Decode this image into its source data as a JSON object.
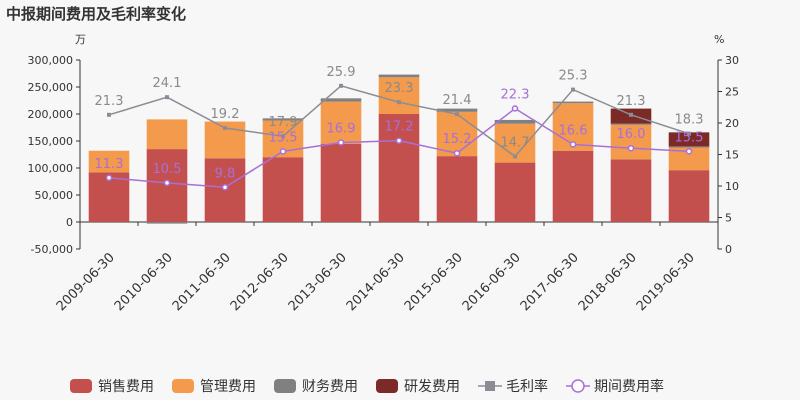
{
  "chart_data": {
    "type": "bar",
    "title": "中报期间费用及毛利率变化",
    "left_unit": "万",
    "right_unit": "%",
    "categories": [
      "2009-06-30",
      "2010-06-30",
      "2011-06-30",
      "2012-06-30",
      "2013-06-30",
      "2014-06-30",
      "2015-06-30",
      "2016-06-30",
      "2017-06-30",
      "2018-06-30",
      "2019-06-30"
    ],
    "ylim_left": [
      -50000,
      300000
    ],
    "yticks_left": [
      "-50,000",
      "0",
      "50,000",
      "100,000",
      "150,000",
      "200,000",
      "250,000",
      "300,000"
    ],
    "ylim_right": [
      0,
      30
    ],
    "yticks_right": [
      "0",
      "5",
      "10",
      "15",
      "20",
      "25",
      "30"
    ],
    "series": [
      {
        "name": "销售费用",
        "kind": "bar",
        "color": "#c4504e",
        "values": [
          92000,
          135000,
          118000,
          120000,
          145000,
          200000,
          122000,
          110000,
          132000,
          116000,
          96000
        ]
      },
      {
        "name": "管理费用",
        "kind": "bar",
        "color": "#f49a4c",
        "values": [
          40000,
          55000,
          68000,
          68000,
          78000,
          68000,
          82000,
          72000,
          88000,
          64000,
          42000
        ]
      },
      {
        "name": "财务费用",
        "kind": "bar",
        "color": "#808080",
        "values": [
          0,
          -3000,
          0,
          4000,
          6000,
          5000,
          6000,
          7000,
          3000,
          2000,
          2000
        ]
      },
      {
        "name": "研发费用",
        "kind": "bar",
        "color": "#7b2a28",
        "values": [
          0,
          0,
          0,
          0,
          0,
          0,
          0,
          0,
          0,
          28000,
          26000
        ]
      },
      {
        "name": "毛利率",
        "kind": "line",
        "axis": "right",
        "color": "#8c8c96",
        "values": [
          21.3,
          24.1,
          19.2,
          17.9,
          25.9,
          23.3,
          21.4,
          14.7,
          25.3,
          21.3,
          18.3
        ],
        "labels": [
          "21.3",
          "24.1",
          "19.2",
          "17.9",
          "25.9",
          "23.3",
          "21.4",
          "14.7",
          "25.3",
          "21.3",
          "18.3"
        ]
      },
      {
        "name": "期间费用率",
        "kind": "line",
        "axis": "right",
        "color": "#a86fd8",
        "values": [
          11.3,
          10.5,
          9.8,
          15.5,
          16.9,
          17.2,
          15.2,
          22.3,
          16.6,
          16.0,
          15.5
        ],
        "labels": [
          "11.3",
          "10.5",
          "9.8",
          "15.5",
          "16.9",
          "17.2",
          "15.2",
          "22.3",
          "16.6",
          "16.0",
          "15.5"
        ]
      }
    ],
    "legend_position": "bottom"
  }
}
